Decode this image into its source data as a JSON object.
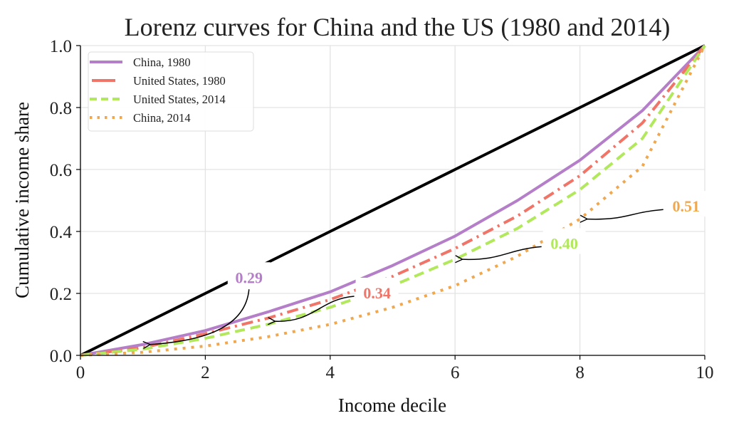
{
  "chart_data": {
    "type": "line",
    "title": "Lorenz curves for China and the US (1980 and 2014)",
    "xlabel": "Income decile",
    "ylabel": "Cumulative income share",
    "xlim": [
      0,
      10
    ],
    "ylim": [
      0,
      1.0
    ],
    "xticks": [
      "0",
      "2",
      "4",
      "6",
      "8",
      "10"
    ],
    "yticks": [
      "0.0",
      "0.2",
      "0.4",
      "0.6",
      "0.8",
      "1.0"
    ],
    "grid": true,
    "legend_position": "top-left",
    "x": [
      0,
      1,
      2,
      3,
      4,
      5,
      6,
      7,
      8,
      9,
      10
    ],
    "equality_line": {
      "values": [
        0,
        0.1,
        0.2,
        0.3,
        0.4,
        0.5,
        0.6,
        0.7,
        0.8,
        0.9,
        1.0
      ],
      "color": "#000000"
    },
    "series": [
      {
        "name": "China, 1980",
        "color": "#b57ec8",
        "style": "solid",
        "values": [
          0,
          0.035,
          0.08,
          0.14,
          0.205,
          0.29,
          0.385,
          0.5,
          0.63,
          0.79,
          1.0
        ]
      },
      {
        "name": "United States, 1980",
        "color": "#f07468",
        "style": "dashdot",
        "values": [
          0,
          0.025,
          0.07,
          0.12,
          0.18,
          0.255,
          0.345,
          0.45,
          0.58,
          0.75,
          1.0
        ]
      },
      {
        "name": "United States, 2014",
        "color": "#b2e85c",
        "style": "dashed",
        "values": [
          0,
          0.02,
          0.055,
          0.1,
          0.155,
          0.225,
          0.31,
          0.41,
          0.535,
          0.7,
          1.0
        ]
      },
      {
        "name": "China, 2014",
        "color": "#f0a850",
        "style": "dotted",
        "values": [
          0,
          0.01,
          0.03,
          0.06,
          0.1,
          0.155,
          0.225,
          0.32,
          0.44,
          0.61,
          1.0
        ]
      }
    ],
    "annotations": [
      {
        "text": "0.29",
        "series": 0,
        "text_at": [
          2.7,
          0.25
        ],
        "points_to": [
          1.05,
          0.035
        ]
      },
      {
        "text": "0.34",
        "series": 1,
        "text_at": [
          4.75,
          0.2
        ],
        "points_to": [
          3.05,
          0.11
        ]
      },
      {
        "text": "0.40",
        "series": 2,
        "text_at": [
          7.75,
          0.36
        ],
        "points_to": [
          6.05,
          0.31
        ]
      },
      {
        "text": "0.51",
        "series": 3,
        "text_at": [
          9.7,
          0.48
        ],
        "points_to": [
          8.05,
          0.44
        ]
      }
    ]
  }
}
